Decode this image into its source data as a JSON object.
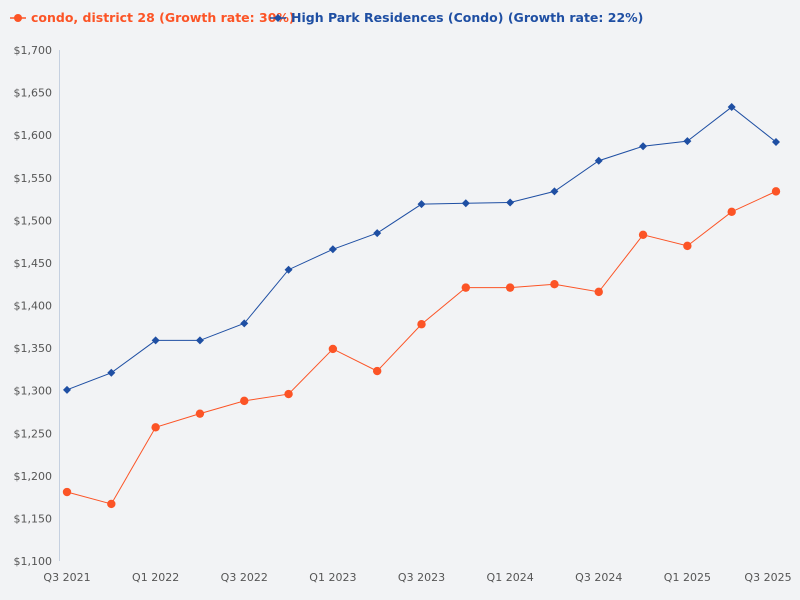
{
  "chart_data": {
    "type": "line",
    "title": "",
    "xlabel": "",
    "ylabel": "",
    "ylim": [
      1100,
      1700
    ],
    "yticks": [
      "$1,100",
      "$1,150",
      "$1,200",
      "$1,250",
      "$1,300",
      "$1,350",
      "$1,400",
      "$1,450",
      "$1,500",
      "$1,550",
      "$1,600",
      "$1,650",
      "$1,700"
    ],
    "ytick_values": [
      1100,
      1150,
      1200,
      1250,
      1300,
      1350,
      1400,
      1450,
      1500,
      1550,
      1600,
      1650,
      1700
    ],
    "categories": [
      "Q3 2021",
      "Q4 2021",
      "Q1 2022",
      "Q2 2022",
      "Q3 2022",
      "Q4 2022",
      "Q1 2023",
      "Q2 2023",
      "Q3 2023",
      "Q4 2023",
      "Q1 2024",
      "Q2 2024",
      "Q3 2024",
      "Q4 2024",
      "Q1 2025",
      "Q2 2025",
      "Q3 2025"
    ],
    "xtick_labels": [
      "Q3 2021",
      "",
      "Q1 2022",
      "",
      "Q3 2022",
      "",
      "Q1 2023",
      "",
      "Q3 2023",
      "",
      "Q1 2024",
      "",
      "Q3 2024",
      "",
      "Q1 2025",
      "",
      "Q3 2025"
    ],
    "grid": false,
    "legend_position": "top-left",
    "series": [
      {
        "name": "condo, district 28 (Growth rate: 30%)",
        "color": "#fc5426",
        "marker": "circle",
        "values": [
          1181,
          1167,
          1257,
          1273,
          1288,
          1296,
          1349,
          1323,
          1378,
          1421,
          1421,
          1425,
          1416,
          1483,
          1470,
          1510,
          1534
        ]
      },
      {
        "name": "High Park Residences (Condo) (Growth rate: 22%)",
        "color": "#1f4fa3",
        "marker": "diamond",
        "values": [
          1301,
          1321,
          1359,
          1359,
          1379,
          1442,
          1466,
          1485,
          1519,
          1520,
          1521,
          1534,
          1570,
          1587,
          1593,
          1633,
          1592
        ]
      }
    ]
  }
}
